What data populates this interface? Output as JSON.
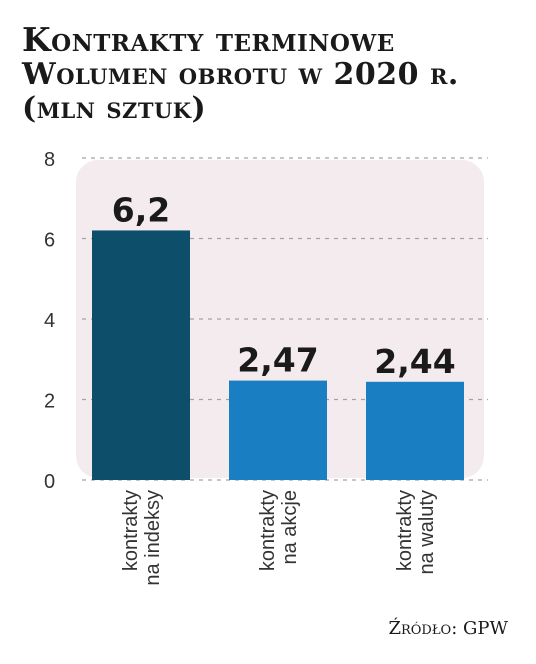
{
  "chart_data": {
    "type": "bar",
    "title": "Kontrakty terminowe",
    "subtitle": "Wolumen obrotu w 2020 r. (mln sztuk)",
    "categories": [
      [
        "kontrakty",
        "na indeksy"
      ],
      [
        "kontrakty",
        "na akcje"
      ],
      [
        "kontrakty",
        "na waluty"
      ]
    ],
    "values": [
      6.2,
      2.47,
      2.44
    ],
    "value_labels": [
      "6,2",
      "2,47",
      "2,44"
    ],
    "bar_colors": [
      "#0d4f6b",
      "#1a7fc2",
      "#1a7fc2"
    ],
    "ylim": [
      0,
      8
    ],
    "yticks": [
      0,
      2,
      4,
      6,
      8
    ],
    "grid": true,
    "xlabel": "",
    "ylabel": ""
  },
  "source": "Źródło: GPW"
}
